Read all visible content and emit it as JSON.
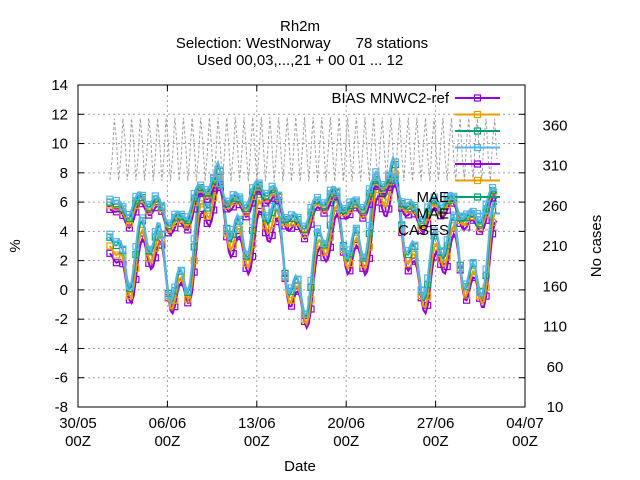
{
  "chart_data": {
    "type": "line",
    "title": "Rh2m",
    "subtitle_selection": "Selection: WestNorway      78 stations",
    "subtitle_used": "Used 00,03,...,21 + 00 01 ... 12",
    "xlabel": "Date",
    "ylabel": "%",
    "y2label": "No cases",
    "ylim": [
      -8,
      14
    ],
    "y2lim": [
      10,
      410
    ],
    "yticks": [
      "-8",
      "-6",
      "-4",
      "-2",
      "0",
      "2",
      "4",
      "6",
      "8",
      "10",
      "12",
      "14"
    ],
    "y2ticks": [
      "10",
      "60",
      "110",
      "160",
      "210",
      "260",
      "310",
      "360"
    ],
    "xticks": [
      {
        "top": "30/05",
        "bottom": "00Z"
      },
      {
        "top": "06/06",
        "bottom": "00Z"
      },
      {
        "top": "13/06",
        "bottom": "00Z"
      },
      {
        "top": "20/06",
        "bottom": "00Z"
      },
      {
        "top": "27/06",
        "bottom": "00Z"
      },
      {
        "top": "04/07",
        "bottom": "00Z"
      }
    ],
    "x_day_range": [
      0,
      35
    ],
    "data_day_range": [
      2.5,
      32.8
    ],
    "grid": true,
    "legend_position": "top-right",
    "series": [
      {
        "name": "BIAS MNWC2-ref",
        "color": "#9400d3",
        "marker": "square",
        "axis": "y",
        "mean": 2.5,
        "amp": 4.0
      },
      {
        "name": "",
        "color": "#e69f00",
        "marker": "square",
        "axis": "y",
        "mean": 3.0,
        "amp": 4.2
      },
      {
        "name": "",
        "color": "#009e73",
        "marker": "square",
        "axis": "y",
        "mean": 3.6,
        "amp": 4.3
      },
      {
        "name": "",
        "color": "#56b4e9",
        "marker": "square",
        "axis": "y",
        "mean": 3.8,
        "amp": 4.4
      },
      {
        "name": "",
        "color": "#9400d3",
        "marker": "square",
        "axis": "y",
        "mean": 5.5,
        "amp": 1.6
      },
      {
        "name": "",
        "color": "#e69f00",
        "marker": "square",
        "axis": "y",
        "mean": 5.8,
        "amp": 1.6
      },
      {
        "name": "MAE",
        "color": "#009e73",
        "marker": "square",
        "axis": "y",
        "mean": 6.0,
        "amp": 1.5
      },
      {
        "name": "MAE",
        "color": "#56b4e9",
        "marker": "square",
        "axis": "y",
        "mean": 6.2,
        "amp": 1.5
      },
      {
        "name": "CASES",
        "color": "#a0a0a0",
        "marker": "none",
        "axis": "y2",
        "min": 290,
        "max": 370
      }
    ],
    "legend_labels": [
      "BIAS MNWC2-ref",
      "",
      "",
      "",
      "",
      "",
      "MAE",
      "MAE",
      "CASES"
    ]
  }
}
